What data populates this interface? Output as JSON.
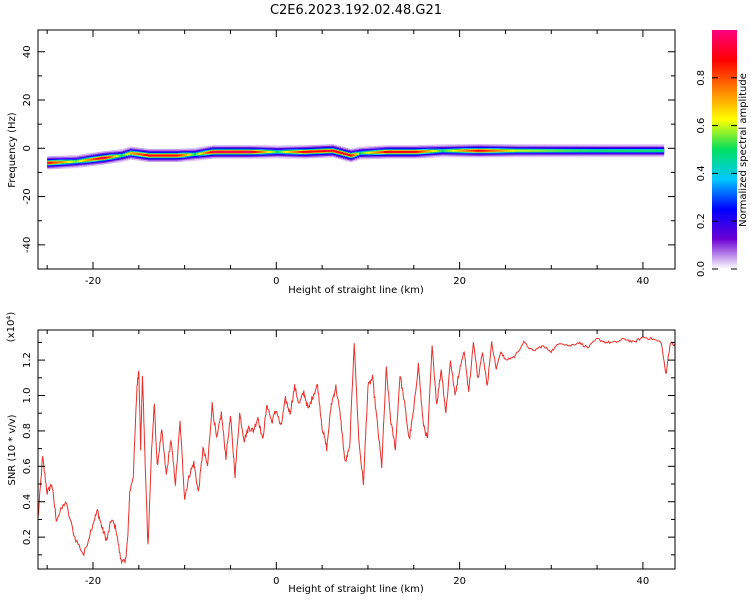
{
  "title": "C2E6.2023.192.02.48.G21",
  "chart_data": [
    {
      "type": "heatmap",
      "xlabel": "Height of straight line (km)",
      "ylabel": "Frequency (Hz)",
      "xlim": [
        -26,
        43.5
      ],
      "ylim": [
        -50,
        49
      ],
      "xticks": [
        "-20",
        "0",
        "20",
        "40"
      ],
      "yticks": [
        "-40",
        "-20",
        "0",
        "20",
        "40"
      ],
      "colorbar": {
        "label": "Normalized spectral amplitude",
        "range": [
          0,
          1
        ],
        "ticks": [
          "0.0",
          "0.2",
          "0.4",
          "0.6",
          "0.8"
        ],
        "colors": [
          "#ffffff",
          "#6a00d4",
          "#0000ff",
          "#00c8ff",
          "#00e060",
          "#ffff00",
          "#ff8000",
          "#ff0000",
          "#ff0080"
        ]
      },
      "ridge": {
        "x": [
          -25,
          -22,
          -19,
          -17,
          -16,
          -14,
          -11,
          -9,
          -7,
          -3,
          0,
          3,
          6,
          8,
          9,
          12,
          15,
          18,
          22,
          26,
          30,
          35,
          40,
          42
        ],
        "frequency": [
          -6,
          -5.5,
          -4,
          -3,
          -2,
          -3,
          -3,
          -2.5,
          -1.5,
          -1.5,
          -1.5,
          -1.5,
          -1,
          -3,
          -2,
          -1.5,
          -1.5,
          -1,
          -1,
          -1,
          -1,
          -1,
          -1,
          -1
        ],
        "peak_amplitude": [
          0.9,
          0.55,
          0.95,
          0.5,
          0.7,
          0.9,
          0.9,
          0.5,
          0.95,
          0.95,
          0.5,
          0.9,
          0.9,
          0.9,
          0.5,
          0.9,
          0.9,
          0.5,
          0.9,
          0.6,
          0.55,
          0.5,
          0.5,
          0.5
        ]
      }
    },
    {
      "type": "line",
      "xlabel": "Height of straight line (km)",
      "ylabel": "SNR (10 * v/v)",
      "y_multiplier": "(x10⁴)",
      "xlim": [
        -26,
        43.5
      ],
      "ylim": [
        0.02,
        1.37
      ],
      "xticks": [
        "-20",
        "0",
        "20",
        "40"
      ],
      "yticks": [
        "0.2",
        "0.4",
        "0.6",
        "0.8",
        "1.0",
        "1.2"
      ],
      "series": [
        {
          "color": "#e8312c",
          "x": [
            -26,
            -25.5,
            -25,
            -24.5,
            -24,
            -23,
            -22,
            -21,
            -20,
            -19.5,
            -19,
            -18.5,
            -18,
            -17.5,
            -17,
            -16.5,
            -16.2,
            -16,
            -15.6,
            -15.2,
            -15,
            -14.8,
            -14.6,
            -14.3,
            -14,
            -13.6,
            -13.3,
            -13,
            -12.5,
            -12,
            -11.5,
            -11,
            -10.5,
            -10,
            -9.5,
            -9,
            -8.5,
            -8,
            -7.5,
            -7,
            -6.5,
            -6,
            -5.5,
            -5,
            -4.5,
            -4,
            -3.5,
            -3,
            -2.5,
            -2,
            -1.5,
            -1,
            -0.5,
            0,
            0.5,
            1,
            1.5,
            2,
            2.5,
            3,
            3.5,
            4,
            4.5,
            5,
            5.5,
            6,
            6.5,
            7,
            7.5,
            8,
            8.5,
            9,
            9.5,
            10,
            10.5,
            11,
            11.5,
            12,
            12.5,
            13,
            13.5,
            14,
            14.5,
            15,
            15.5,
            16,
            16.5,
            17,
            17.5,
            18,
            18.5,
            19,
            19.5,
            20,
            20.5,
            21,
            21.5,
            22,
            22.5,
            23,
            23.5,
            24,
            24.5,
            25,
            26,
            27,
            28,
            29,
            30,
            31,
            32,
            33,
            34,
            35,
            36,
            37,
            38,
            39,
            40,
            41,
            42,
            42.5,
            43,
            43.5
          ],
          "values": [
            0.3,
            0.65,
            0.45,
            0.5,
            0.3,
            0.4,
            0.2,
            0.1,
            0.28,
            0.35,
            0.25,
            0.18,
            0.3,
            0.25,
            0.08,
            0.05,
            0.2,
            0.45,
            0.55,
            1.05,
            1.15,
            0.7,
            1.12,
            0.6,
            0.15,
            0.7,
            0.95,
            0.6,
            0.8,
            0.55,
            0.75,
            0.5,
            0.85,
            0.42,
            0.55,
            0.62,
            0.45,
            0.7,
            0.6,
            0.95,
            0.75,
            0.9,
            0.65,
            0.88,
            0.55,
            0.9,
            0.75,
            0.82,
            0.8,
            0.88,
            0.75,
            0.95,
            0.85,
            0.92,
            0.82,
            0.98,
            0.9,
            1.05,
            0.95,
            1.02,
            0.92,
            1.0,
            1.06,
            0.82,
            0.7,
            0.95,
            1.05,
            0.88,
            0.62,
            0.7,
            1.3,
            0.75,
            0.5,
            1.05,
            1.1,
            0.85,
            0.6,
            1.15,
            0.85,
            0.7,
            1.12,
            0.95,
            0.75,
            0.92,
            1.18,
            0.85,
            0.75,
            1.28,
            0.95,
            1.15,
            0.9,
            1.2,
            1.0,
            1.15,
            1.25,
            1.02,
            1.3,
            1.1,
            1.25,
            1.05,
            1.3,
            1.15,
            1.25,
            1.2,
            1.22,
            1.3,
            1.25,
            1.28,
            1.25,
            1.3,
            1.28,
            1.3,
            1.27,
            1.32,
            1.3,
            1.3,
            1.32,
            1.3,
            1.33,
            1.32,
            1.3,
            1.12,
            1.3,
            1.28
          ]
        }
      ]
    }
  ]
}
